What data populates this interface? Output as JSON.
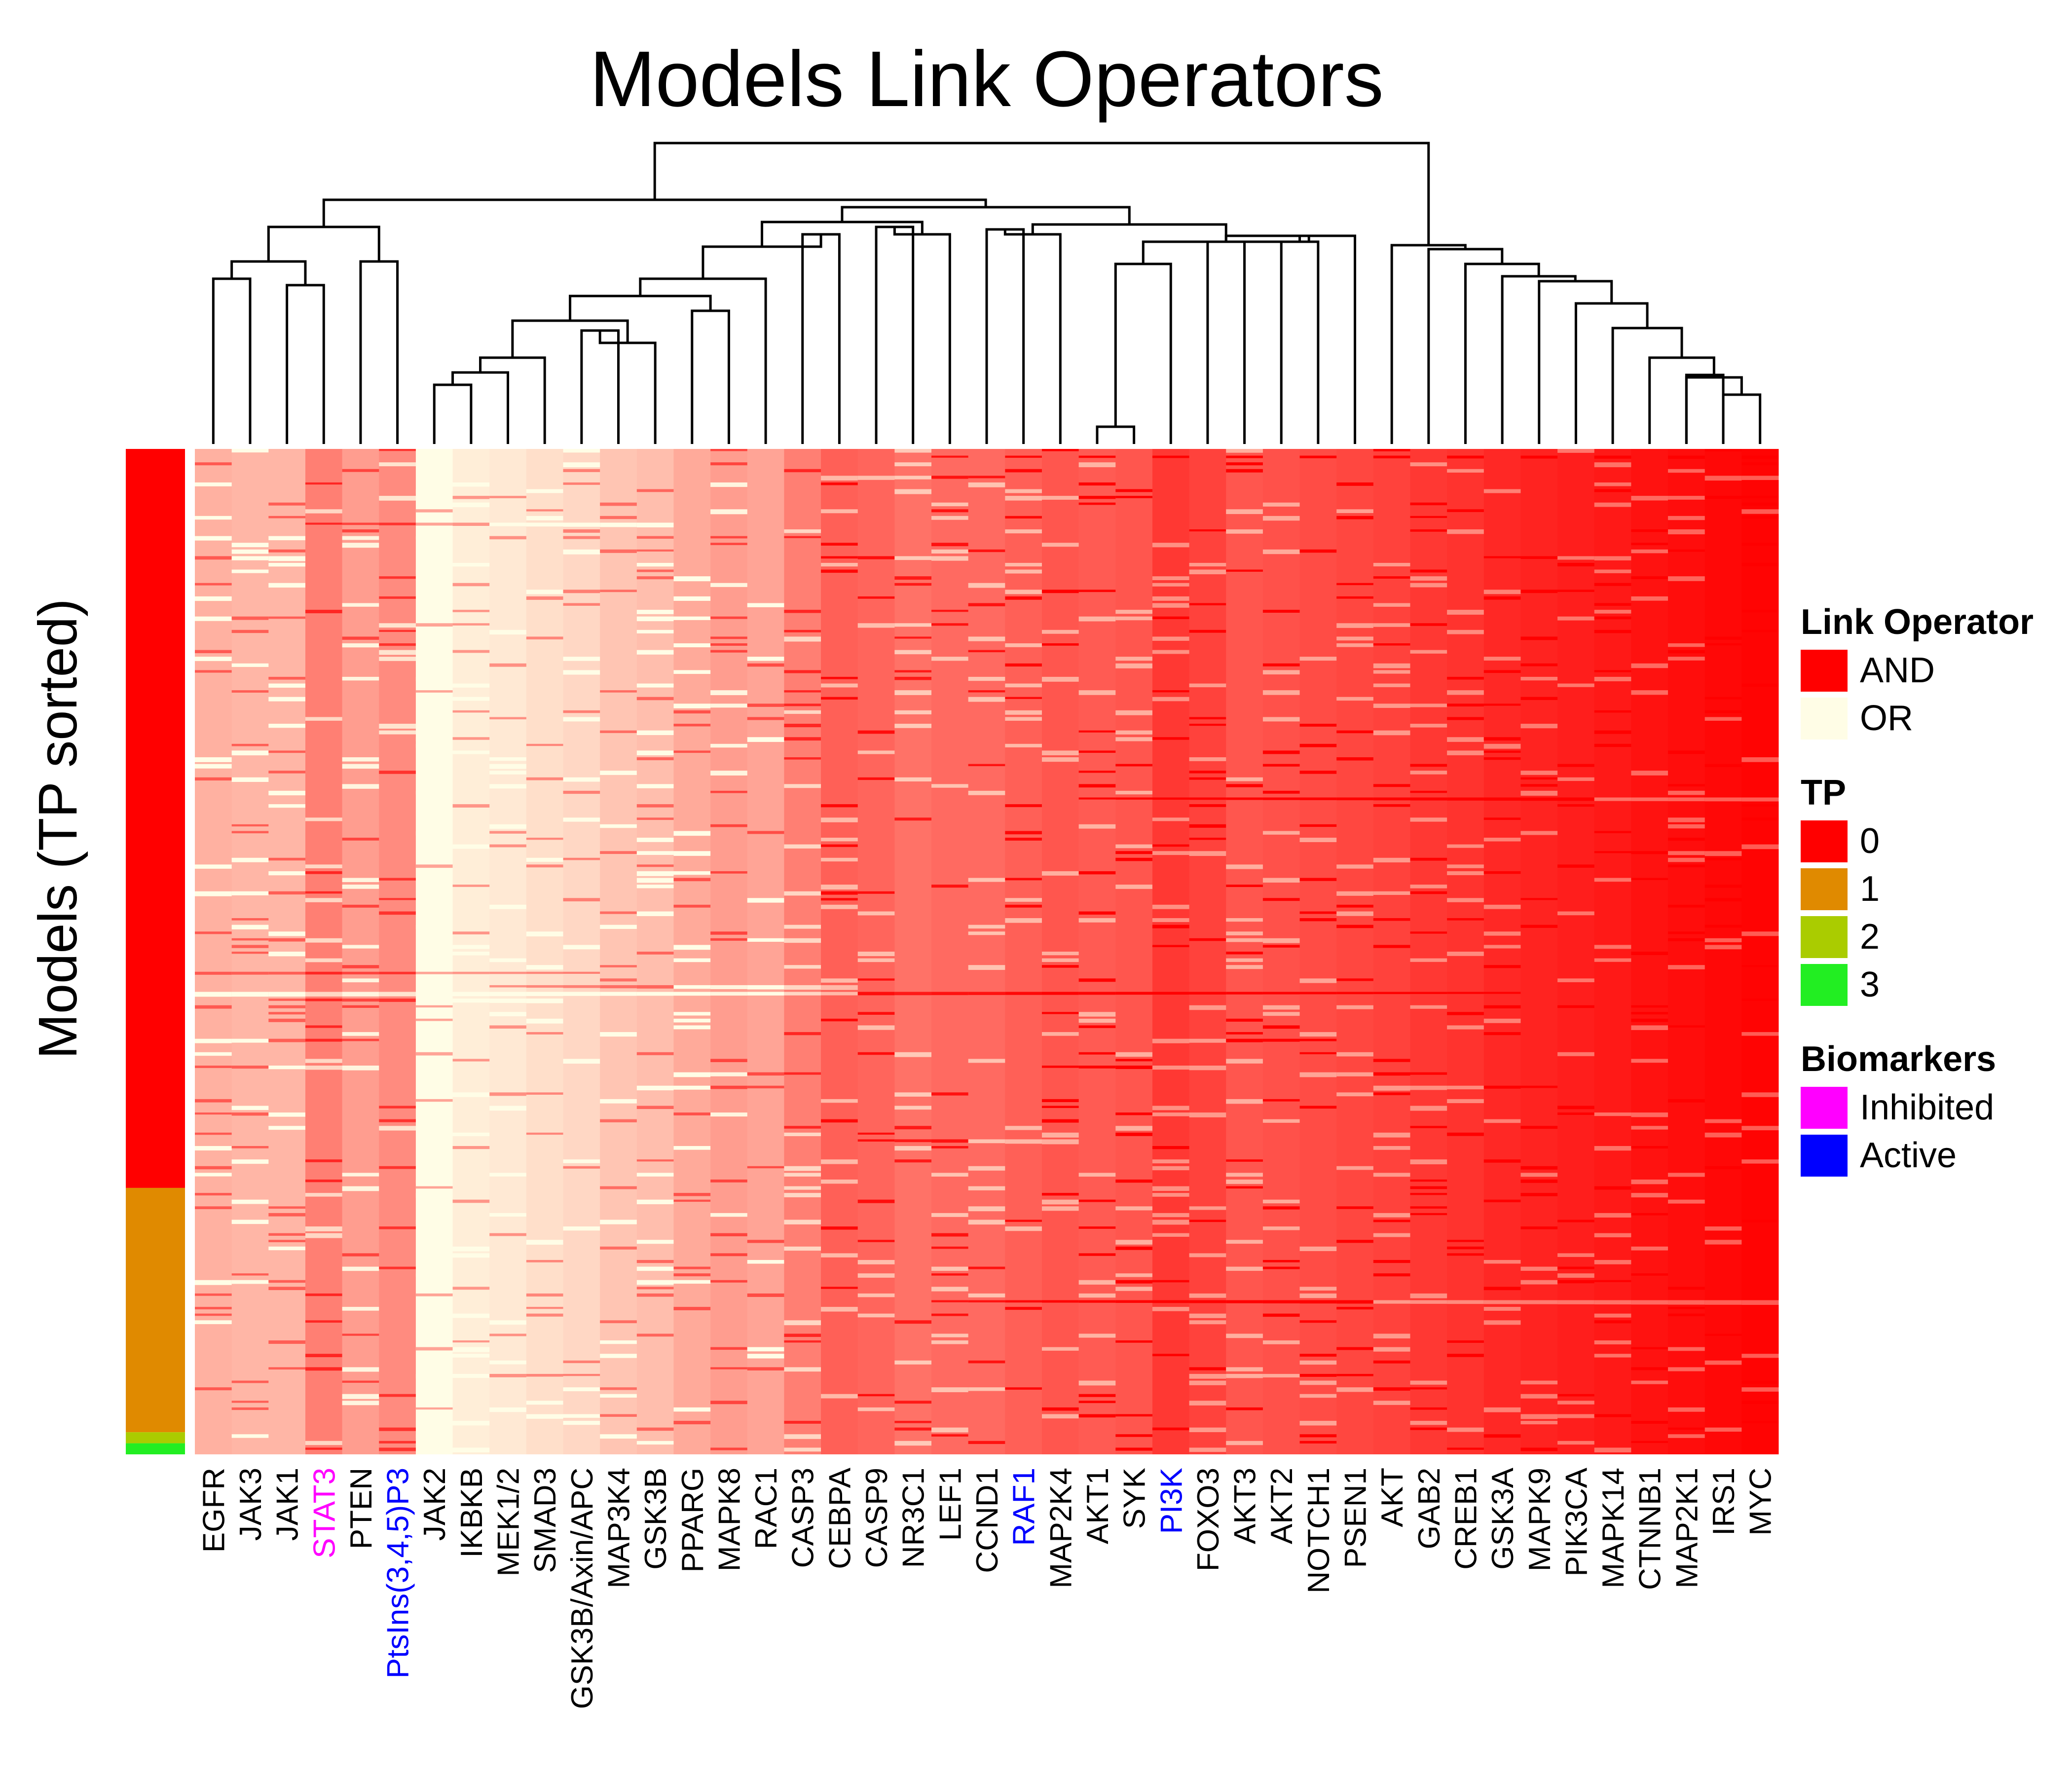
{
  "chart_data": {
    "type": "heatmap",
    "title": "Models Link Operators",
    "ylabel": "Models (TP sorted)",
    "xlabel": "",
    "columns": [
      {
        "name": "EGFR",
        "and_fraction": 0.3,
        "biomarker": "none"
      },
      {
        "name": "JAK3",
        "and_fraction": 0.28,
        "biomarker": "none"
      },
      {
        "name": "JAK1",
        "and_fraction": 0.28,
        "biomarker": "none"
      },
      {
        "name": "STAT3",
        "and_fraction": 0.5,
        "biomarker": "inhibited"
      },
      {
        "name": "PTEN",
        "and_fraction": 0.38,
        "biomarker": "none"
      },
      {
        "name": "PtsIns(3,4,5)P3",
        "and_fraction": 0.45,
        "biomarker": "active"
      },
      {
        "name": "JAK2",
        "and_fraction": 0.0,
        "biomarker": "none"
      },
      {
        "name": "IKBKB",
        "and_fraction": 0.06,
        "biomarker": "none"
      },
      {
        "name": "MEK1/2",
        "and_fraction": 0.08,
        "biomarker": "none"
      },
      {
        "name": "SMAD3",
        "and_fraction": 0.12,
        "biomarker": "none"
      },
      {
        "name": "GSK3B/Axin/APC",
        "and_fraction": 0.15,
        "biomarker": "none"
      },
      {
        "name": "MAP3K4",
        "and_fraction": 0.22,
        "biomarker": "none"
      },
      {
        "name": "GSK3B",
        "and_fraction": 0.25,
        "biomarker": "none"
      },
      {
        "name": "PPARG",
        "and_fraction": 0.33,
        "biomarker": "none"
      },
      {
        "name": "MAPK8",
        "and_fraction": 0.38,
        "biomarker": "none"
      },
      {
        "name": "RAC1",
        "and_fraction": 0.35,
        "biomarker": "none"
      },
      {
        "name": "CASP3",
        "and_fraction": 0.5,
        "biomarker": "none"
      },
      {
        "name": "CEBPA",
        "and_fraction": 0.62,
        "biomarker": "none"
      },
      {
        "name": "CASP9",
        "and_fraction": 0.6,
        "biomarker": "none"
      },
      {
        "name": "NR3C1",
        "and_fraction": 0.55,
        "biomarker": "none"
      },
      {
        "name": "LEF1",
        "and_fraction": 0.58,
        "biomarker": "none"
      },
      {
        "name": "CCND1",
        "and_fraction": 0.58,
        "biomarker": "none"
      },
      {
        "name": "RAF1",
        "and_fraction": 0.62,
        "biomarker": "active"
      },
      {
        "name": "MAP2K4",
        "and_fraction": 0.66,
        "biomarker": "none"
      },
      {
        "name": "AKT1",
        "and_fraction": 0.64,
        "biomarker": "none"
      },
      {
        "name": "SYK",
        "and_fraction": 0.66,
        "biomarker": "none"
      },
      {
        "name": "PI3K",
        "and_fraction": 0.78,
        "biomarker": "active"
      },
      {
        "name": "FOXO3",
        "and_fraction": 0.74,
        "biomarker": "none"
      },
      {
        "name": "AKT3",
        "and_fraction": 0.66,
        "biomarker": "none"
      },
      {
        "name": "AKT2",
        "and_fraction": 0.68,
        "biomarker": "none"
      },
      {
        "name": "NOTCH1",
        "and_fraction": 0.7,
        "biomarker": "none"
      },
      {
        "name": "PSEN1",
        "and_fraction": 0.72,
        "biomarker": "none"
      },
      {
        "name": "AKT",
        "and_fraction": 0.74,
        "biomarker": "none"
      },
      {
        "name": "GAB2",
        "and_fraction": 0.78,
        "biomarker": "none"
      },
      {
        "name": "CREB1",
        "and_fraction": 0.8,
        "biomarker": "none"
      },
      {
        "name": "GSK3A",
        "and_fraction": 0.84,
        "biomarker": "none"
      },
      {
        "name": "MAPK9",
        "and_fraction": 0.86,
        "biomarker": "none"
      },
      {
        "name": "PIK3CA",
        "and_fraction": 0.88,
        "biomarker": "none"
      },
      {
        "name": "MAPK14",
        "and_fraction": 0.9,
        "biomarker": "none"
      },
      {
        "name": "CTNNB1",
        "and_fraction": 0.93,
        "biomarker": "none"
      },
      {
        "name": "MAP2K1",
        "and_fraction": 0.95,
        "biomarker": "none"
      },
      {
        "name": "IRS1",
        "and_fraction": 0.97,
        "biomarker": "none"
      },
      {
        "name": "MYC",
        "and_fraction": 0.985,
        "biomarker": "none"
      }
    ],
    "row_annotation": {
      "name": "TP",
      "segments": [
        {
          "tp": "0",
          "fraction": 0.735
        },
        {
          "tp": "1",
          "fraction": 0.243
        },
        {
          "tp": "2",
          "fraction": 0.011
        },
        {
          "tp": "3",
          "fraction": 0.011
        }
      ]
    },
    "legends": [
      {
        "title": "Link Operator",
        "items": [
          {
            "label": "AND",
            "color": "#ff0000"
          },
          {
            "label": "OR",
            "color": "#fffde6"
          }
        ]
      },
      {
        "title": "TP",
        "items": [
          {
            "label": "0",
            "color": "#ff0000"
          },
          {
            "label": "1",
            "color": "#e08a00"
          },
          {
            "label": "2",
            "color": "#aacc00"
          },
          {
            "label": "3",
            "color": "#22ee22"
          }
        ]
      },
      {
        "title": "Biomarkers",
        "items": [
          {
            "label": "Inhibited",
            "color": "#ff00ff"
          },
          {
            "label": "Active",
            "color": "#0000ff"
          }
        ]
      }
    ],
    "legend_position": "right",
    "colors": {
      "and": "#ff0000",
      "or": "#fffde6",
      "inhibited_label": "#ff00ff",
      "active_label": "#0000ff",
      "default_label": "#000000"
    },
    "column_dendrogram": true
  }
}
